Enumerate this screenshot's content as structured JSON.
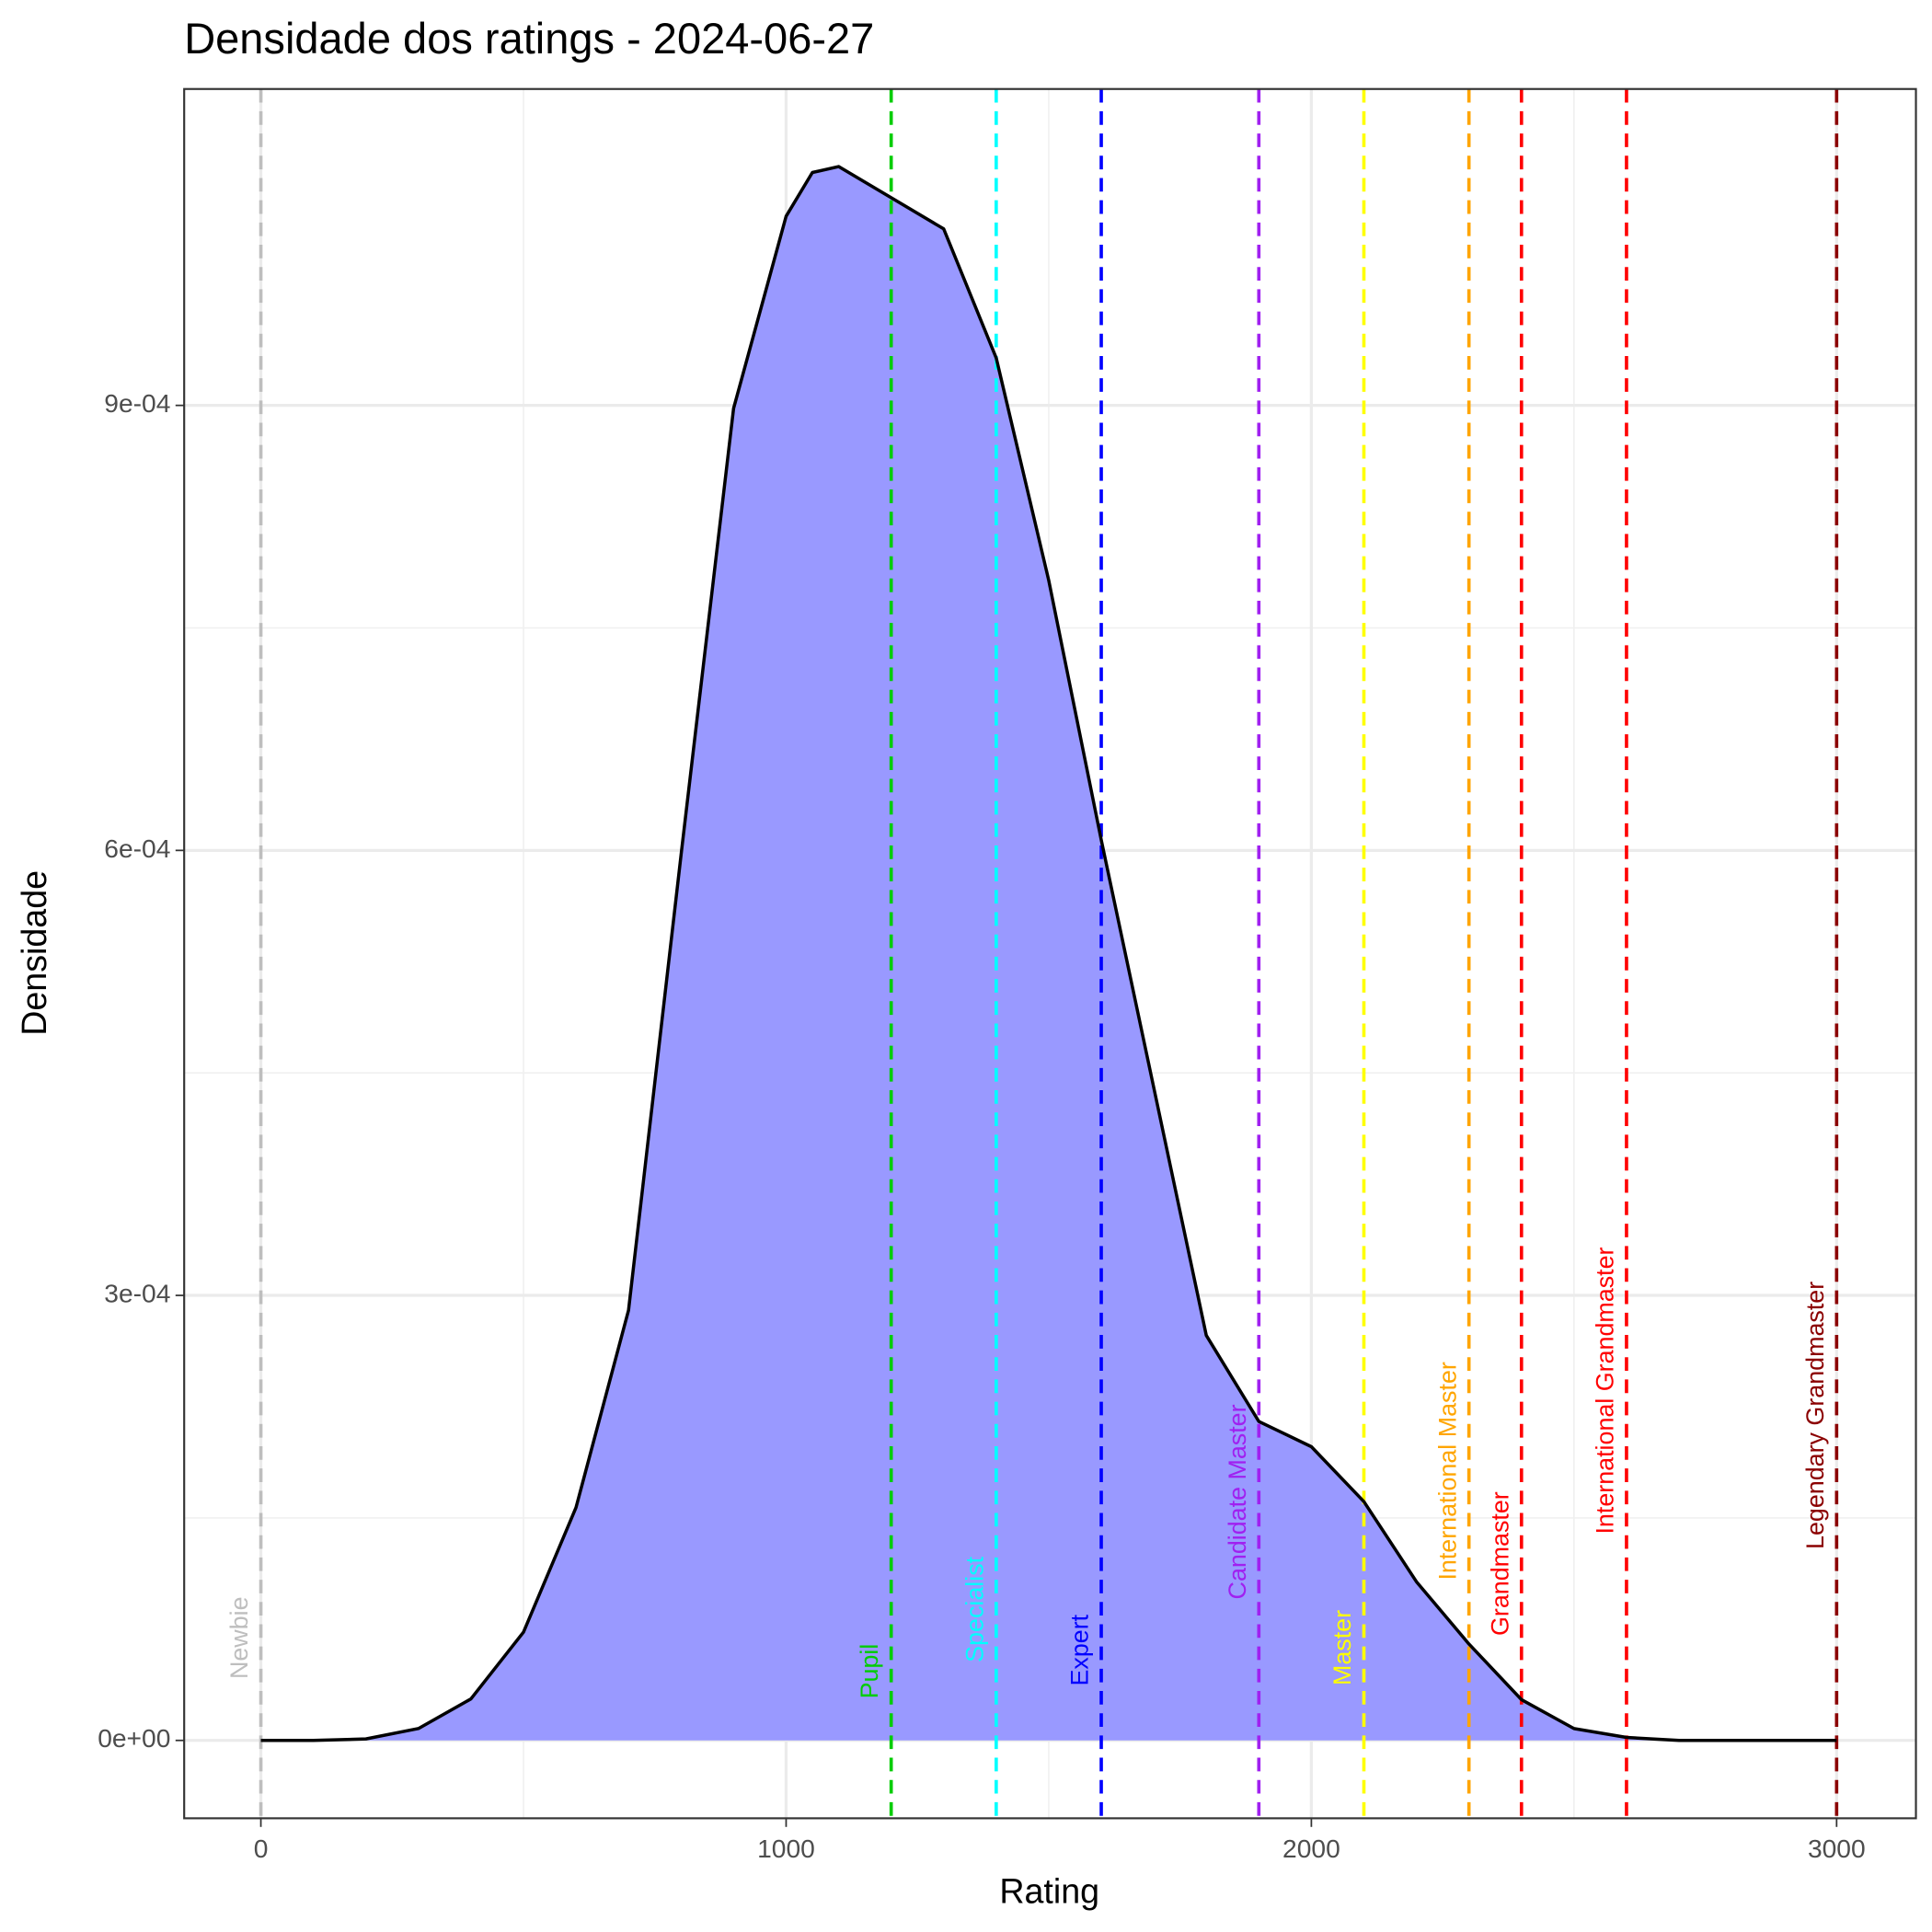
{
  "chart_data": {
    "type": "area",
    "title": "Densidade dos ratings - 2024-06-27",
    "x_label": "Rating",
    "y_label": "Densidade",
    "x": [
      0,
      100,
      200,
      300,
      400,
      500,
      600,
      700,
      800,
      900,
      1000,
      1050,
      1100,
      1200,
      1300,
      1400,
      1500,
      1600,
      1700,
      1800,
      1900,
      2000,
      2100,
      2200,
      2300,
      2400,
      2500,
      2600,
      2700,
      2800,
      2900,
      3000
    ],
    "values": [
      0,
      0,
      1e-06,
      8e-06,
      2.8e-05,
      7.3e-05,
      0.000157,
      0.00029,
      0.000597,
      0.000898,
      0.0010275,
      0.001057,
      0.001061,
      0.00104,
      0.001019,
      0.000932,
      0.000782,
      0.000607,
      0.00044,
      0.000273,
      0.000215,
      0.000198,
      0.000161,
      0.000107,
      6.5e-05,
      2.75e-05,
      8e-06,
      2e-06,
      0,
      0,
      0,
      0
    ],
    "color": "#9999ff",
    "line_color": "#000000",
    "xlim": [
      -146,
      3151
    ],
    "xticks": [
      0,
      1000,
      2000,
      3000
    ],
    "ylim": [
      -5.25e-05,
      0.0011133
    ],
    "yticks": [
      {
        "value": 0,
        "label": "0e+00"
      },
      {
        "value": 0.0003,
        "label": "3e-04"
      },
      {
        "value": 0.0006,
        "label": "6e-04"
      },
      {
        "value": 0.0009,
        "label": "9e-04"
      }
    ],
    "grid": true,
    "thresholds": [
      {
        "label": "Newbie",
        "value": 0,
        "color": "#bebebe"
      },
      {
        "label": "Pupil",
        "value": 1200,
        "color": "#00cd00"
      },
      {
        "label": "Specialist",
        "value": 1400,
        "color": "#00ffff"
      },
      {
        "label": "Expert",
        "value": 1600,
        "color": "#0000ff"
      },
      {
        "label": "Candidate Master",
        "value": 1900,
        "color": "#a020f0"
      },
      {
        "label": "Master",
        "value": 2100,
        "color": "#ffff00"
      },
      {
        "label": "International Master",
        "value": 2300,
        "color": "#ffa500"
      },
      {
        "label": "Grandmaster",
        "value": 2400,
        "color": "#ff0000"
      },
      {
        "label": "International Grandmaster",
        "value": 2600,
        "color": "#ff0000"
      },
      {
        "label": "Legendary Grandmaster",
        "value": 3000,
        "color": "#8b0000"
      }
    ]
  }
}
